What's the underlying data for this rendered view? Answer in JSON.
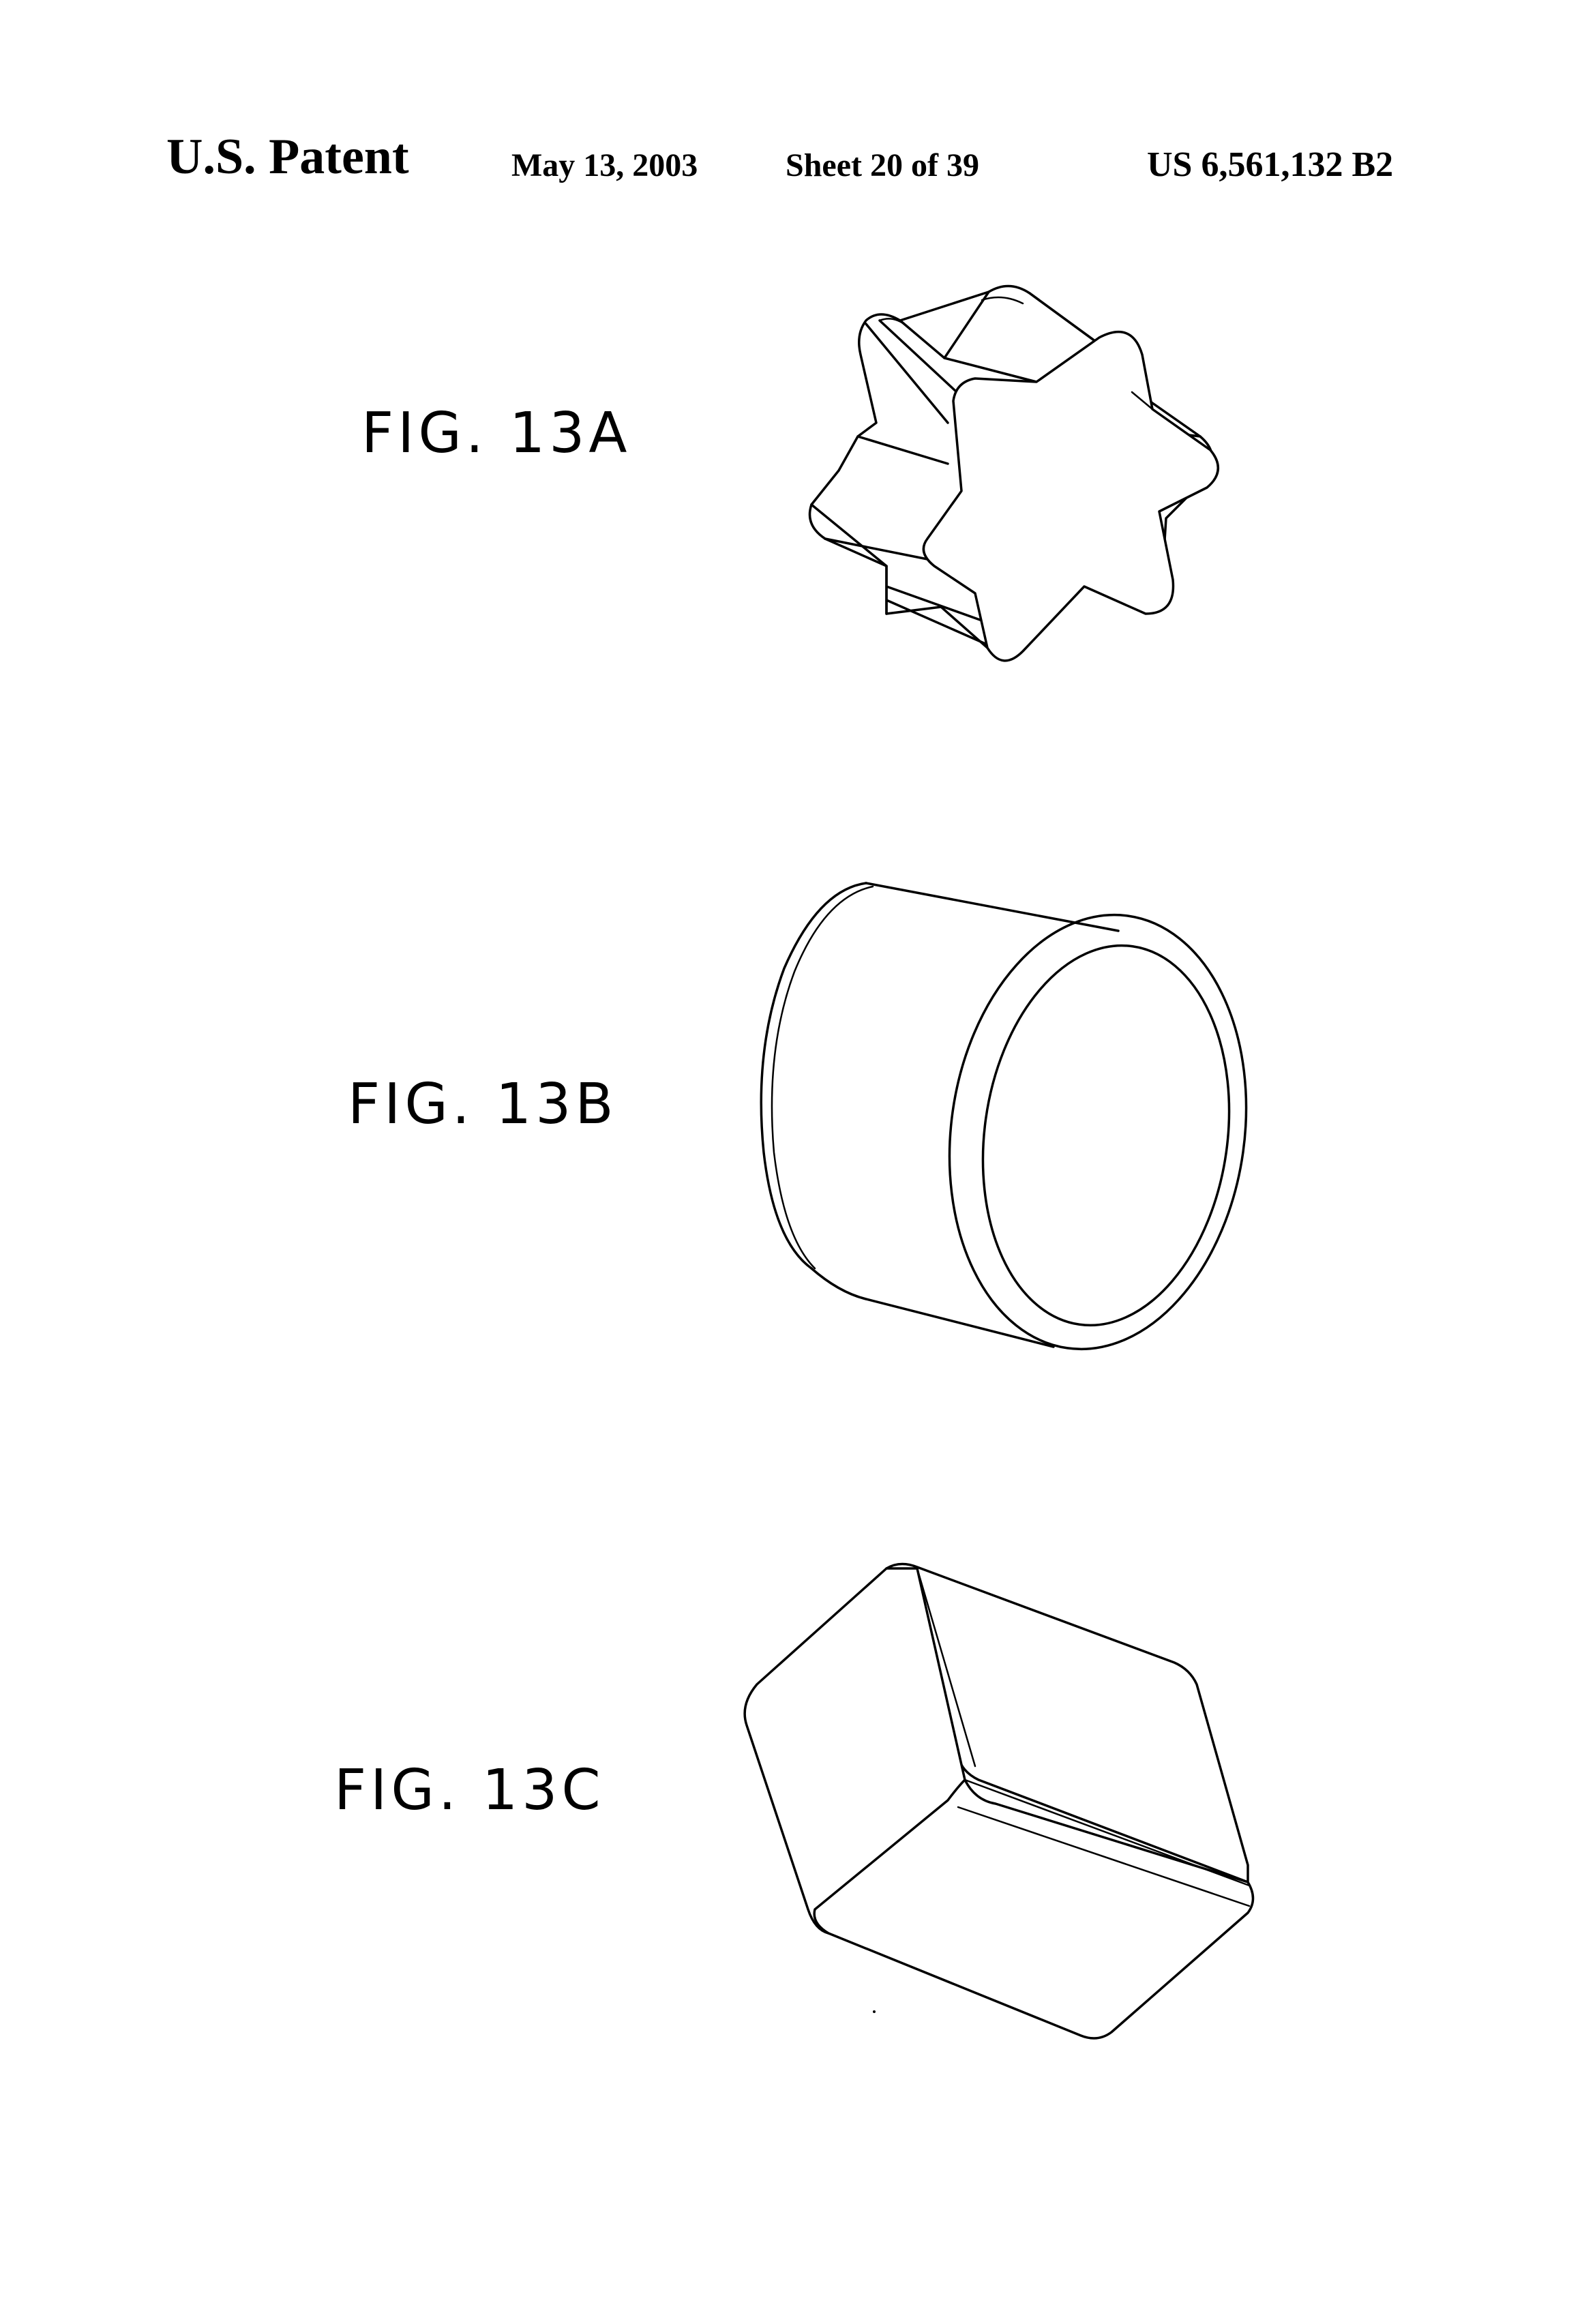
{
  "header": {
    "left": "U.S. Patent",
    "date": "May 13, 2003",
    "sheet": "Sheet 20 of 39",
    "number": "US 6,561,132 B2"
  },
  "figures": [
    {
      "label": "FIG. 13A",
      "shape": "six-pointed star prism"
    },
    {
      "label": "FIG. 13B",
      "shape": "cylinder"
    },
    {
      "label": "FIG. 13C",
      "shape": "rectangular block"
    }
  ]
}
